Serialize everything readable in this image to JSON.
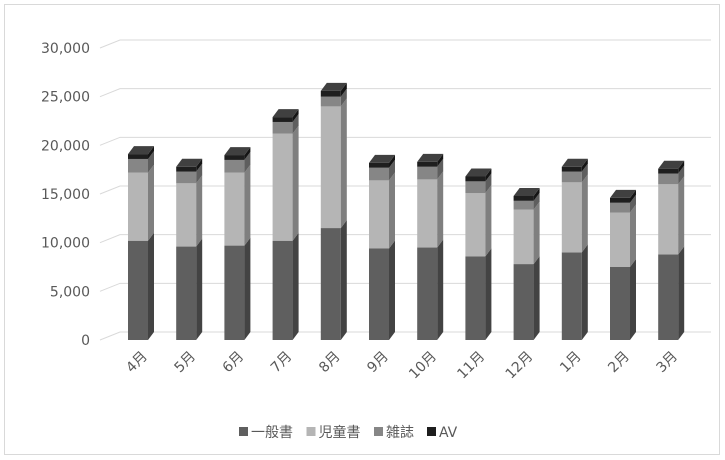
{
  "chart_data": {
    "type": "bar",
    "stacked": true,
    "style": "3d-column",
    "categories": [
      "4月",
      "5月",
      "6月",
      "7月",
      "8月",
      "9月",
      "10月",
      "11月",
      "12月",
      "1月",
      "2月",
      "3月"
    ],
    "series": [
      {
        "name": "一般書",
        "color": "#5f5f5f",
        "values": [
          10200,
          9600,
          9700,
          10200,
          11500,
          9400,
          9500,
          8600,
          7800,
          9000,
          7500,
          8800
        ]
      },
      {
        "name": "児童書",
        "color": "#b5b5b5",
        "values": [
          7000,
          6500,
          7500,
          11000,
          12500,
          7000,
          7000,
          6500,
          5600,
          7200,
          5600,
          7200
        ]
      },
      {
        "name": "雑誌",
        "color": "#868686",
        "values": [
          1400,
          1200,
          1300,
          1200,
          1000,
          1300,
          1300,
          1200,
          900,
          1100,
          1000,
          1100
        ]
      },
      {
        "name": "AV",
        "color": "#1e1e1e",
        "values": [
          500,
          500,
          500,
          500,
          600,
          500,
          500,
          500,
          500,
          500,
          500,
          500
        ]
      }
    ],
    "ylim": [
      0,
      30000
    ],
    "yticks": [
      "0",
      "5,000",
      "10,000",
      "15,000",
      "20,000",
      "25,000",
      "30,000"
    ],
    "ytick_values": [
      0,
      5000,
      10000,
      15000,
      20000,
      25000,
      30000
    ],
    "grid": true,
    "legend_position": "bottom"
  }
}
